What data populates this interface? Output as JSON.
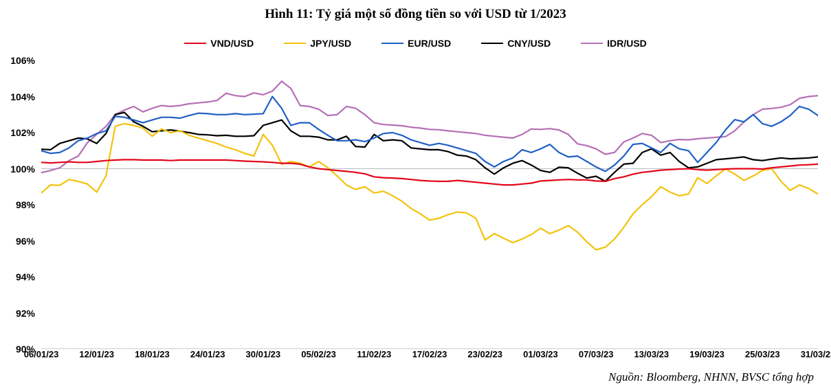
{
  "title": "Hình 11: Tỷ giá một số đồng tiền so với USD từ 1/2023",
  "source": "Nguồn: Bloomberg, NHNN, BVSC tổng hợp",
  "chart": {
    "type": "line",
    "background_color": "#ffffff",
    "title_fontsize": 19,
    "title_fontweight": "bold",
    "label_fontsize": 14,
    "xlim": [
      0,
      84
    ],
    "ylim": [
      90,
      106
    ],
    "ytick_step": 2,
    "ytick_suffix": "%",
    "grid": false,
    "reference_line": {
      "y": 100,
      "color": "#6f7b8c",
      "width": 0.6
    },
    "bottom_axis_color": "#6f7b8c",
    "line_width": 2.2,
    "yticks": [
      90,
      92,
      94,
      96,
      98,
      100,
      102,
      104,
      106
    ],
    "xticks": [
      {
        "pos": 0,
        "label": "06/01/23"
      },
      {
        "pos": 6,
        "label": "12/01/23"
      },
      {
        "pos": 12,
        "label": "18/01/23"
      },
      {
        "pos": 18,
        "label": "24/01/23"
      },
      {
        "pos": 24,
        "label": "30/01/23"
      },
      {
        "pos": 30,
        "label": "05/02/23"
      },
      {
        "pos": 36,
        "label": "11/02/23"
      },
      {
        "pos": 42,
        "label": "17/02/23"
      },
      {
        "pos": 48,
        "label": "23/02/23"
      },
      {
        "pos": 54,
        "label": "01/03/23"
      },
      {
        "pos": 60,
        "label": "07/03/23"
      },
      {
        "pos": 66,
        "label": "13/03/23"
      },
      {
        "pos": 72,
        "label": "19/03/23"
      },
      {
        "pos": 78,
        "label": "25/03/23"
      },
      {
        "pos": 84,
        "label": "31/03/23"
      }
    ],
    "series": [
      {
        "name": "VND/USD",
        "color": "#e3061a",
        "y": [
          100.35,
          100.32,
          100.35,
          100.38,
          100.35,
          100.35,
          100.4,
          100.45,
          100.48,
          100.5,
          100.5,
          100.48,
          100.48,
          100.48,
          100.45,
          100.48,
          100.48,
          100.48,
          100.48,
          100.48,
          100.48,
          100.45,
          100.42,
          100.4,
          100.38,
          100.35,
          100.3,
          100.3,
          100.25,
          100.1,
          100.0,
          99.95,
          99.9,
          99.85,
          99.8,
          99.72,
          99.55,
          99.5,
          99.48,
          99.45,
          99.4,
          99.35,
          99.32,
          99.3,
          99.3,
          99.35,
          99.3,
          99.25,
          99.2,
          99.15,
          99.1,
          99.1,
          99.15,
          99.2,
          99.32,
          99.35,
          99.38,
          99.4,
          99.38,
          99.38,
          99.32,
          99.3,
          99.45,
          99.55,
          99.7,
          99.8,
          99.85,
          99.92,
          99.95,
          99.98,
          100.0,
          99.95,
          99.92,
          99.95,
          99.98,
          100.0,
          100.0,
          100.0,
          99.98,
          100.05,
          100.1,
          100.15,
          100.2,
          100.22,
          100.25
        ]
      },
      {
        "name": "JPY/USD",
        "color": "#f3c20c",
        "y": [
          98.65,
          99.1,
          99.08,
          99.4,
          99.3,
          99.15,
          98.7,
          99.6,
          102.35,
          102.5,
          102.4,
          102.25,
          101.8,
          102.2,
          102.0,
          102.1,
          101.85,
          101.7,
          101.55,
          101.4,
          101.2,
          101.05,
          100.85,
          100.7,
          101.9,
          101.3,
          100.25,
          100.4,
          100.3,
          100.1,
          100.4,
          100.05,
          99.6,
          99.1,
          98.85,
          99.0,
          98.65,
          98.75,
          98.5,
          98.2,
          97.8,
          97.5,
          97.15,
          97.25,
          97.45,
          97.6,
          97.55,
          97.25,
          96.05,
          96.4,
          96.15,
          95.9,
          96.1,
          96.35,
          96.7,
          96.4,
          96.6,
          96.85,
          96.48,
          95.95,
          95.5,
          95.65,
          96.1,
          96.75,
          97.5,
          98.0,
          98.45,
          99.0,
          98.7,
          98.5,
          98.6,
          99.5,
          99.18,
          99.6,
          100.0,
          99.7,
          99.35,
          99.6,
          99.9,
          100.0,
          99.3,
          98.8,
          99.1,
          98.9,
          98.6
        ]
      },
      {
        "name": "EUR/USD",
        "color": "#1f5fc7",
        "y": [
          101.0,
          100.85,
          100.9,
          101.15,
          101.55,
          101.7,
          101.95,
          102.1,
          102.9,
          102.85,
          102.7,
          102.55,
          102.7,
          102.85,
          102.85,
          102.8,
          102.95,
          103.08,
          103.05,
          103.0,
          103.0,
          103.05,
          103.0,
          103.02,
          103.05,
          104.0,
          103.35,
          102.4,
          102.55,
          102.55,
          102.18,
          101.85,
          101.55,
          101.55,
          101.6,
          101.5,
          101.7,
          101.95,
          102.0,
          101.85,
          101.6,
          101.45,
          101.3,
          101.4,
          101.3,
          101.15,
          101.0,
          100.85,
          100.4,
          100.1,
          100.4,
          100.6,
          101.05,
          100.9,
          101.1,
          101.35,
          100.9,
          100.65,
          100.7,
          100.4,
          100.1,
          99.85,
          100.2,
          100.7,
          101.35,
          101.4,
          101.15,
          100.9,
          101.4,
          101.1,
          101.0,
          100.35,
          100.9,
          101.45,
          102.15,
          102.72,
          102.6,
          103.0,
          102.5,
          102.35,
          102.6,
          102.95,
          103.45,
          103.3,
          102.95
        ]
      },
      {
        "name": "CNY/USD",
        "color": "#000000",
        "y": [
          101.08,
          101.05,
          101.4,
          101.55,
          101.7,
          101.65,
          101.4,
          101.95,
          103.0,
          103.12,
          102.6,
          102.35,
          102.05,
          102.1,
          102.15,
          102.08,
          102.0,
          101.9,
          101.88,
          101.83,
          101.85,
          101.8,
          101.8,
          101.83,
          102.4,
          102.55,
          102.7,
          102.1,
          101.8,
          101.8,
          101.75,
          101.6,
          101.6,
          101.8,
          101.23,
          101.2,
          101.9,
          101.55,
          101.6,
          101.55,
          101.15,
          101.1,
          101.05,
          101.05,
          100.95,
          100.75,
          100.7,
          100.5,
          100.05,
          99.7,
          100.05,
          100.3,
          100.45,
          100.2,
          99.9,
          99.8,
          100.08,
          100.05,
          99.75,
          99.48,
          99.58,
          99.3,
          99.8,
          100.25,
          100.3,
          100.9,
          101.1,
          100.75,
          100.9,
          100.4,
          100.05,
          100.1,
          100.3,
          100.5,
          100.55,
          100.6,
          100.65,
          100.5,
          100.45,
          100.53,
          100.6,
          100.55,
          100.57,
          100.6,
          100.65
        ]
      },
      {
        "name": "IDR/USD",
        "color": "#b56fb5",
        "y": [
          99.78,
          99.9,
          100.05,
          100.45,
          100.7,
          101.45,
          101.9,
          102.35,
          103.0,
          103.25,
          103.45,
          103.15,
          103.35,
          103.5,
          103.45,
          103.5,
          103.6,
          103.65,
          103.7,
          103.78,
          104.18,
          104.05,
          104.0,
          104.2,
          104.1,
          104.3,
          104.85,
          104.45,
          103.5,
          103.45,
          103.3,
          102.95,
          103.0,
          103.45,
          103.35,
          103.0,
          102.55,
          102.45,
          102.42,
          102.38,
          102.3,
          102.25,
          102.18,
          102.16,
          102.1,
          102.05,
          102.0,
          101.95,
          101.85,
          101.8,
          101.75,
          101.7,
          101.9,
          102.2,
          102.18,
          102.22,
          102.15,
          101.9,
          101.38,
          101.28,
          101.1,
          100.8,
          100.9,
          101.48,
          101.7,
          101.95,
          101.85,
          101.45,
          101.55,
          101.62,
          101.6,
          101.66,
          101.7,
          101.74,
          101.78,
          102.1,
          102.6,
          103.0,
          103.3,
          103.34,
          103.4,
          103.55,
          103.9,
          104.0,
          104.05
        ]
      }
    ]
  }
}
